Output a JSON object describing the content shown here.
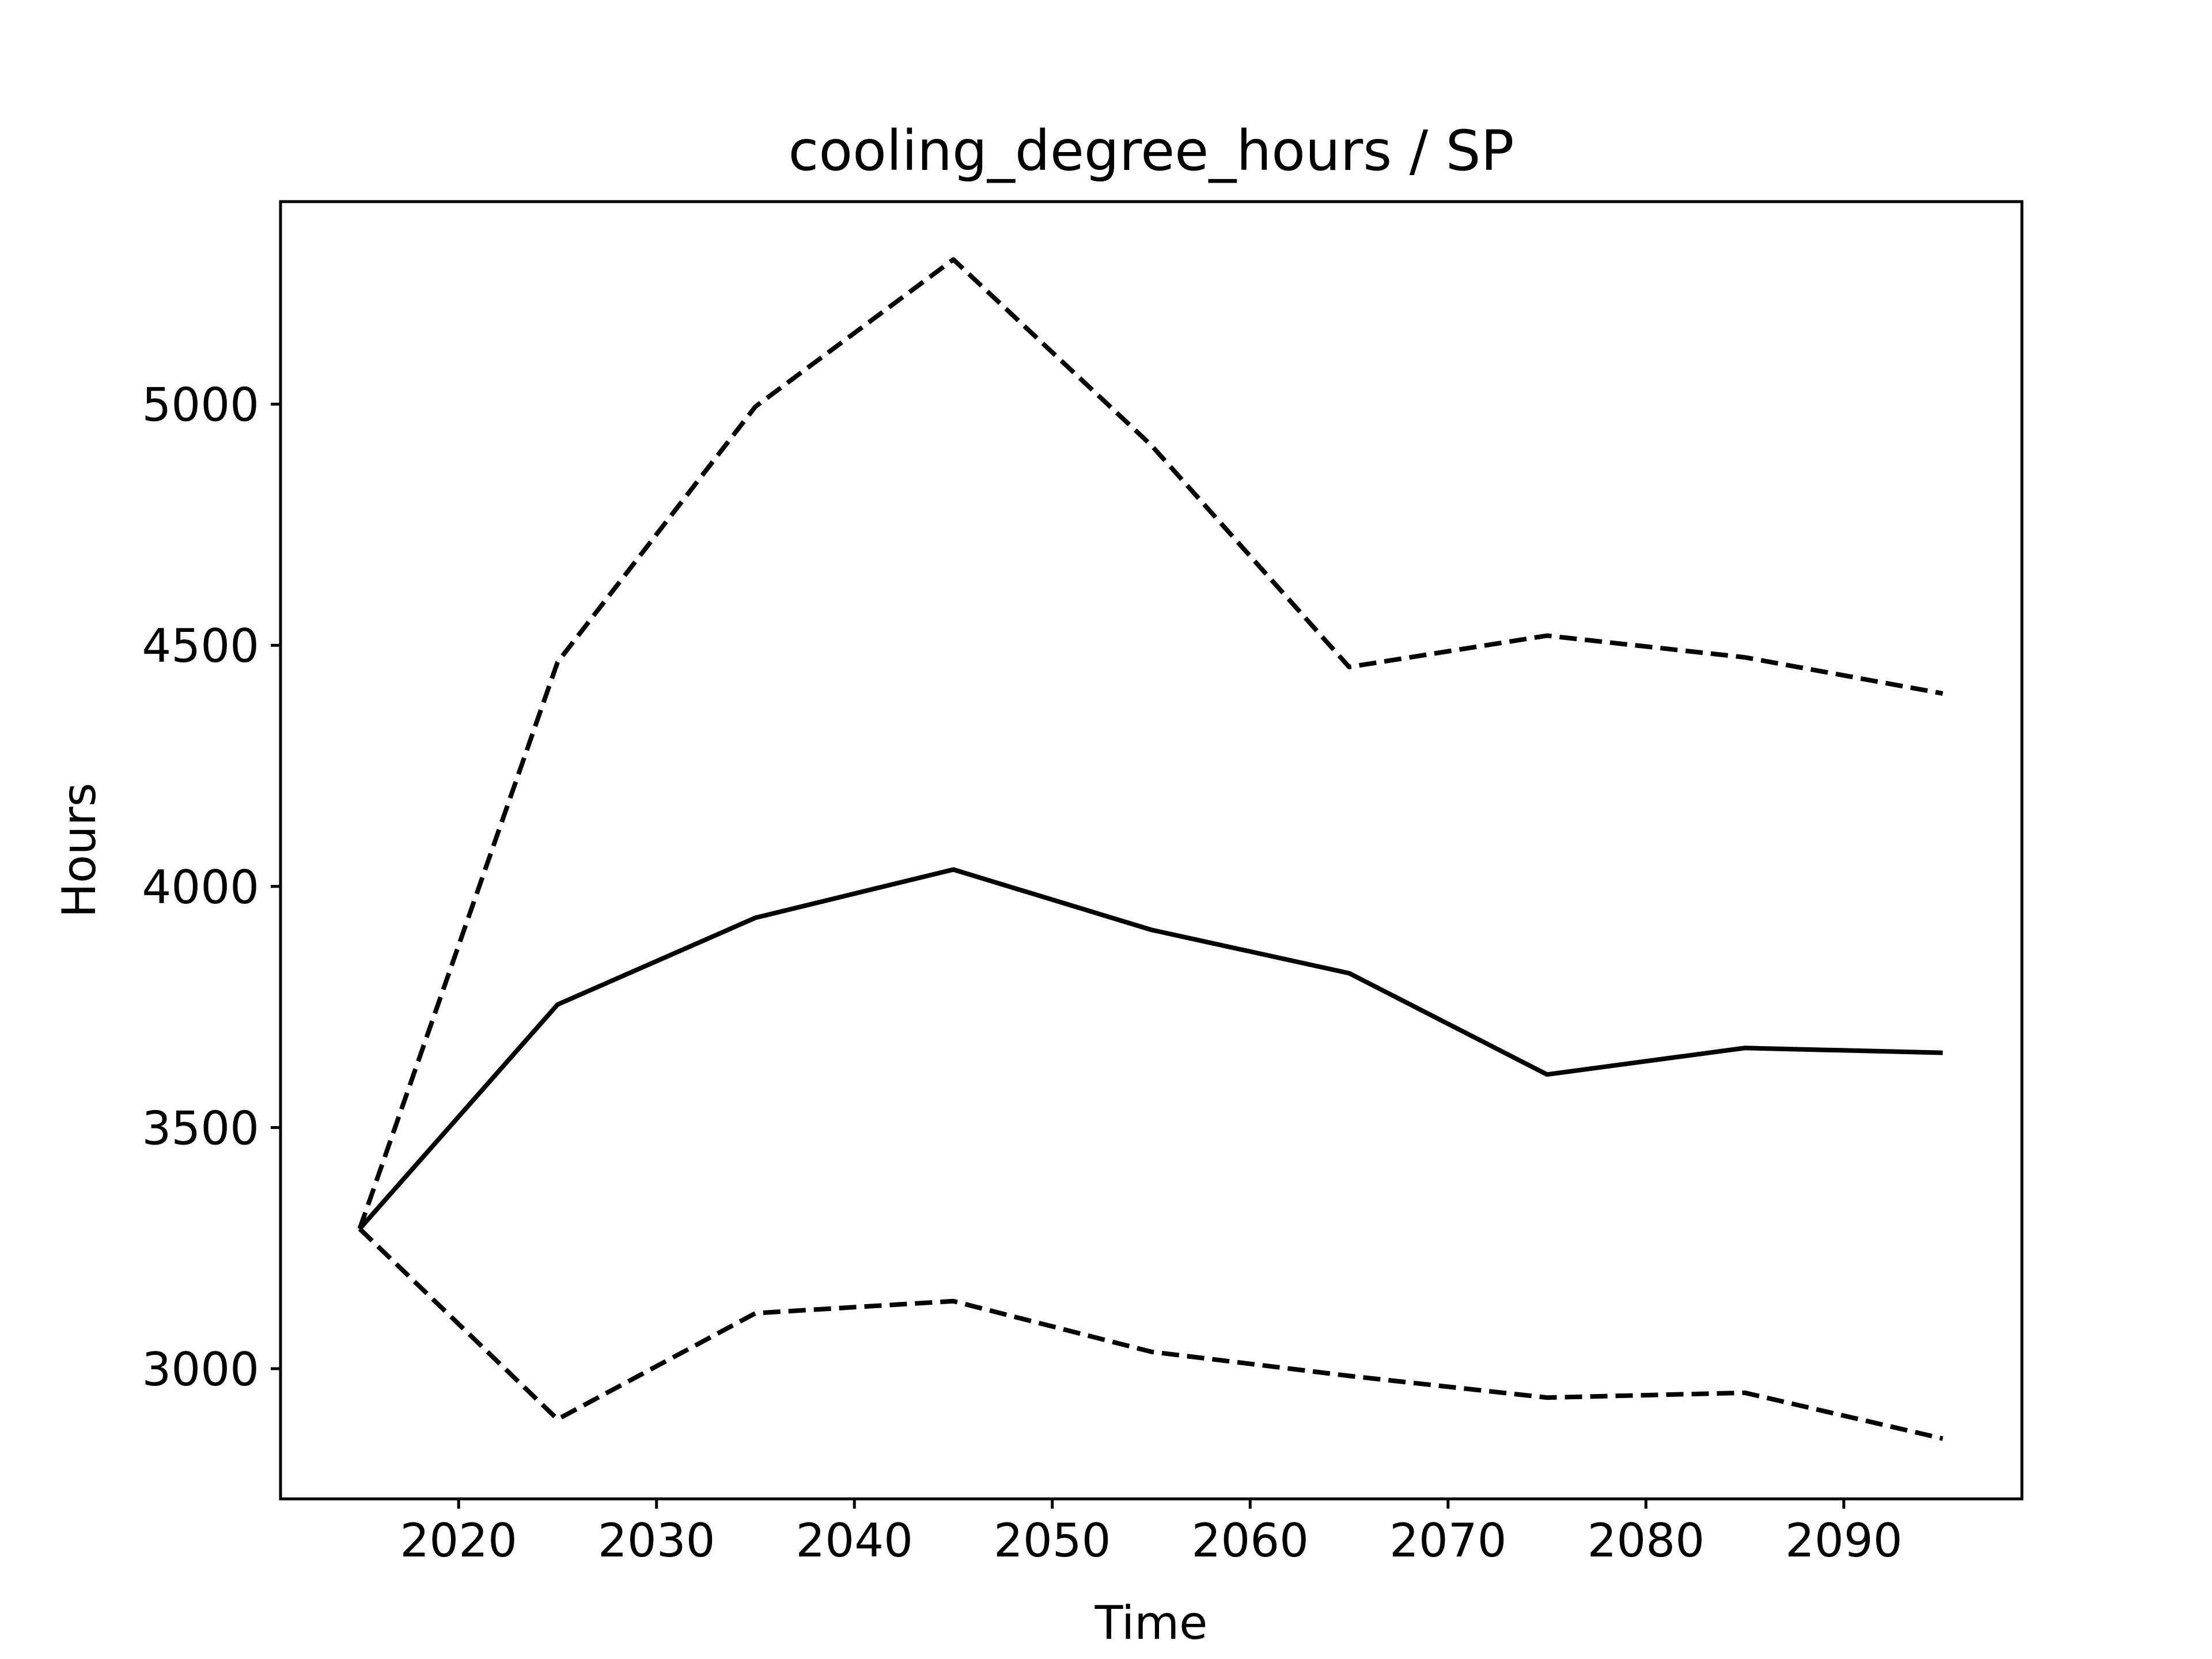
{
  "chart_data": {
    "type": "line",
    "title": "cooling_degree_hours / SP",
    "xlabel": "Time",
    "ylabel": "Hours",
    "xlim": [
      2011,
      2099
    ],
    "ylim": [
      2730,
      5420
    ],
    "xticks": [
      2020,
      2030,
      2040,
      2050,
      2060,
      2070,
      2080,
      2090
    ],
    "yticks": [
      3000,
      3500,
      4000,
      4500,
      5000
    ],
    "grid": false,
    "x": [
      2015,
      2025,
      2035,
      2045,
      2055,
      2065,
      2075,
      2085,
      2095
    ],
    "series": [
      {
        "style": "solid",
        "color": "#000000",
        "values": [
          3290,
          3755,
          3935,
          4035,
          3910,
          3820,
          3610,
          3665,
          3655
        ]
      },
      {
        "style": "dashed",
        "color": "#000000",
        "values": [
          3290,
          4465,
          4995,
          5300,
          4915,
          4455,
          4520,
          4475,
          4400
        ]
      },
      {
        "style": "dashed",
        "color": "#000000",
        "values": [
          3290,
          2895,
          3115,
          3140,
          3035,
          2985,
          2940,
          2950,
          2855
        ]
      }
    ]
  }
}
